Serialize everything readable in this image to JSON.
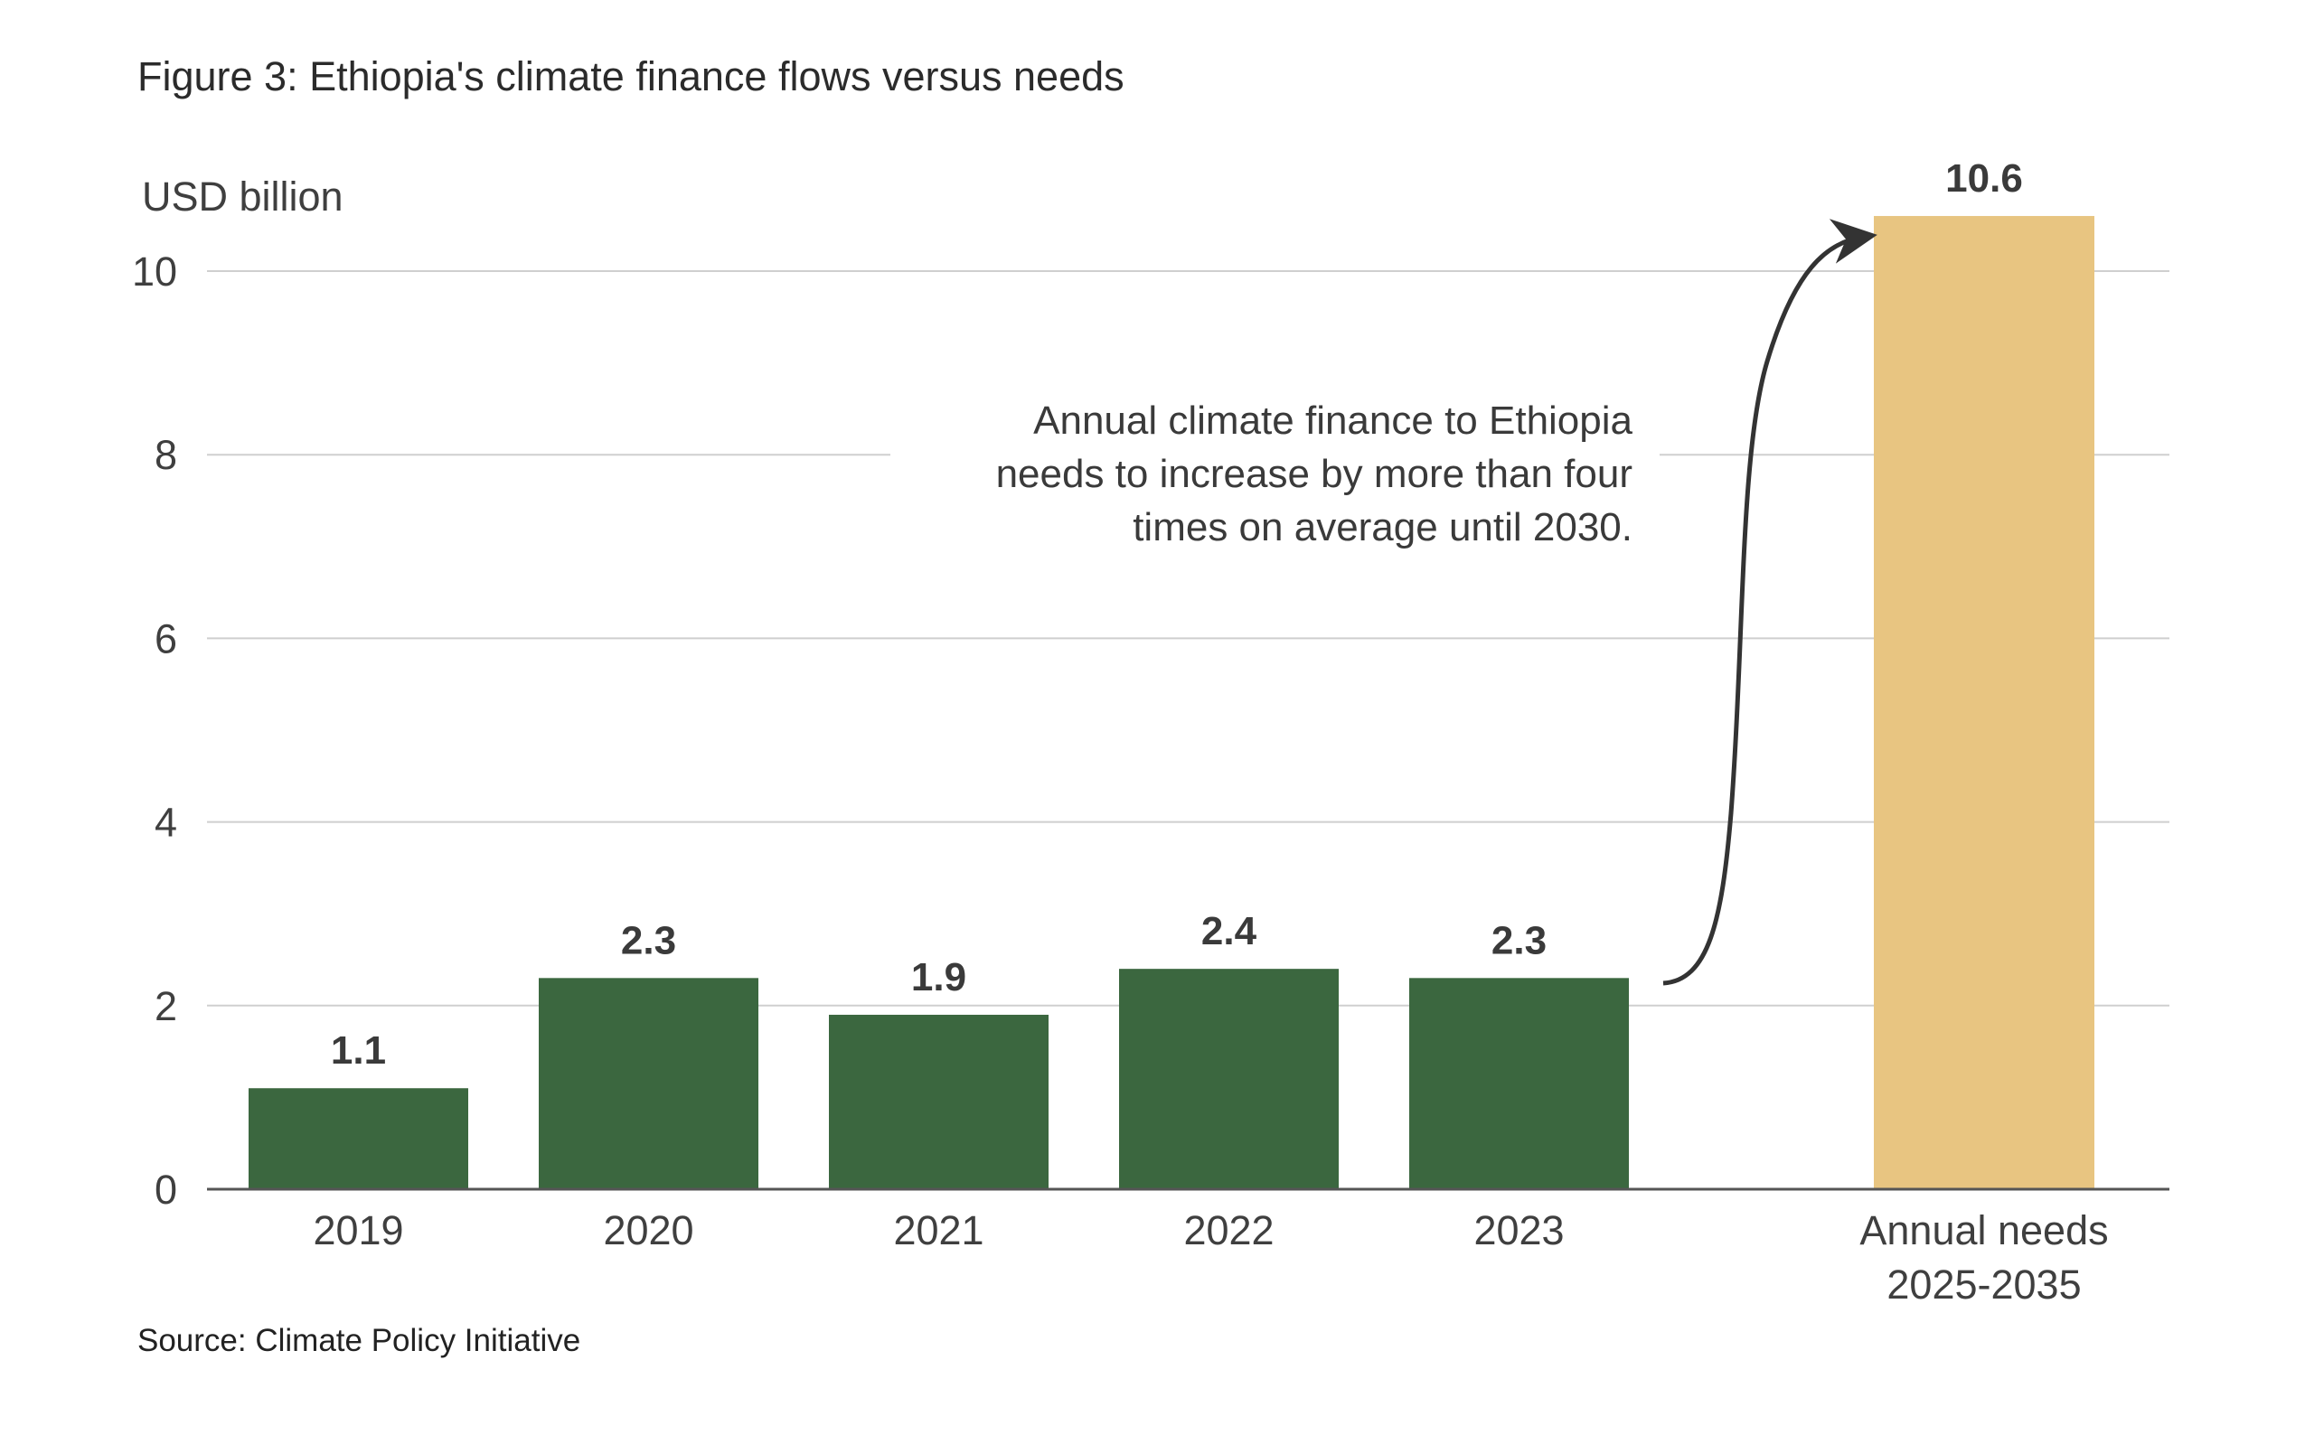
{
  "chart_data": {
    "type": "bar",
    "title": "Figure 3: Ethiopia's climate finance flows versus needs",
    "ylabel": "USD billion",
    "xlabel": "",
    "ylim": [
      0,
      10.6
    ],
    "yticks": [
      0,
      2,
      4,
      6,
      8,
      10
    ],
    "grid": true,
    "categories": [
      "2019",
      "2020",
      "2021",
      "2022",
      "2023"
    ],
    "values": [
      1.1,
      2.3,
      1.9,
      2.4,
      2.3
    ],
    "data_labels": [
      "1.1",
      "2.3",
      "1.9",
      "2.4",
      "2.3"
    ],
    "needs": {
      "category_lines": [
        "Annual needs",
        "2025-2035"
      ],
      "value": 10.6,
      "data_label": "10.6"
    },
    "colors": {
      "flows": "#3B673F",
      "needs": "#E8C581",
      "text": "#3a3a3a",
      "grid": "#cfcfcf",
      "axis": "#555555"
    },
    "annotation": {
      "lines": [
        "Annual climate finance to Ethiopia",
        "needs to increase by more than four",
        "times on average until 2030."
      ],
      "arrow": "from 2023 bar to annual needs bar"
    },
    "source": "Source: Climate Policy Initiative",
    "legend": "none"
  }
}
